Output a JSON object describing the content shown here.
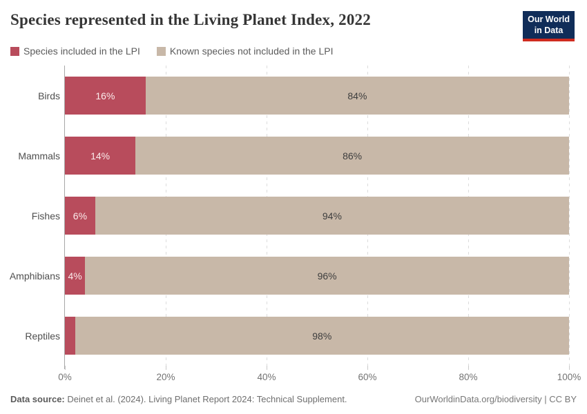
{
  "header": {
    "title": "Species represented in the Living Planet Index, 2022",
    "logo": {
      "line1": "Our World",
      "line2": "in Data",
      "bg_color": "#102d59",
      "accent_color": "#cf2b1f"
    }
  },
  "legend": {
    "items": [
      {
        "label": "Species included in the LPI",
        "color": "#b84c5c"
      },
      {
        "label": "Known species not included in the LPI",
        "color": "#c8b8a8"
      }
    ]
  },
  "chart_data": {
    "type": "bar",
    "variant": "horizontal-stacked",
    "title": "Species represented in the Living Planet Index, 2022",
    "categories": [
      "Birds",
      "Mammals",
      "Fishes",
      "Amphibians",
      "Reptiles"
    ],
    "series": [
      {
        "name": "Species included in the LPI",
        "color": "#b84c5c",
        "values": [
          16,
          14,
          6,
          4,
          2
        ]
      },
      {
        "name": "Known species not included in the LPI",
        "color": "#c8b8a8",
        "values": [
          84,
          86,
          94,
          96,
          98
        ]
      }
    ],
    "rows": [
      {
        "category": "Birds",
        "included": 16,
        "included_label": "16%",
        "not_included": 84,
        "not_included_label": "84%"
      },
      {
        "category": "Mammals",
        "included": 14,
        "included_label": "14%",
        "not_included": 86,
        "not_included_label": "86%"
      },
      {
        "category": "Fishes",
        "included": 6,
        "included_label": "6%",
        "not_included": 94,
        "not_included_label": "94%"
      },
      {
        "category": "Amphibians",
        "included": 4,
        "included_label": "4%",
        "not_included": 96,
        "not_included_label": "96%"
      },
      {
        "category": "Reptiles",
        "included": 2,
        "included_label": "",
        "not_included": 98,
        "not_included_label": "98%"
      }
    ],
    "x_ticks": [
      "0%",
      "20%",
      "40%",
      "60%",
      "80%",
      "100%"
    ],
    "xlim": [
      0,
      100
    ],
    "grid": true,
    "legend_position": "top"
  },
  "footer": {
    "source_label": "Data source:",
    "source_text": " Deinet et al. (2024). Living Planet Report 2024: Technical Supplement.",
    "credit": "OurWorldinData.org/biodiversity | CC BY"
  }
}
